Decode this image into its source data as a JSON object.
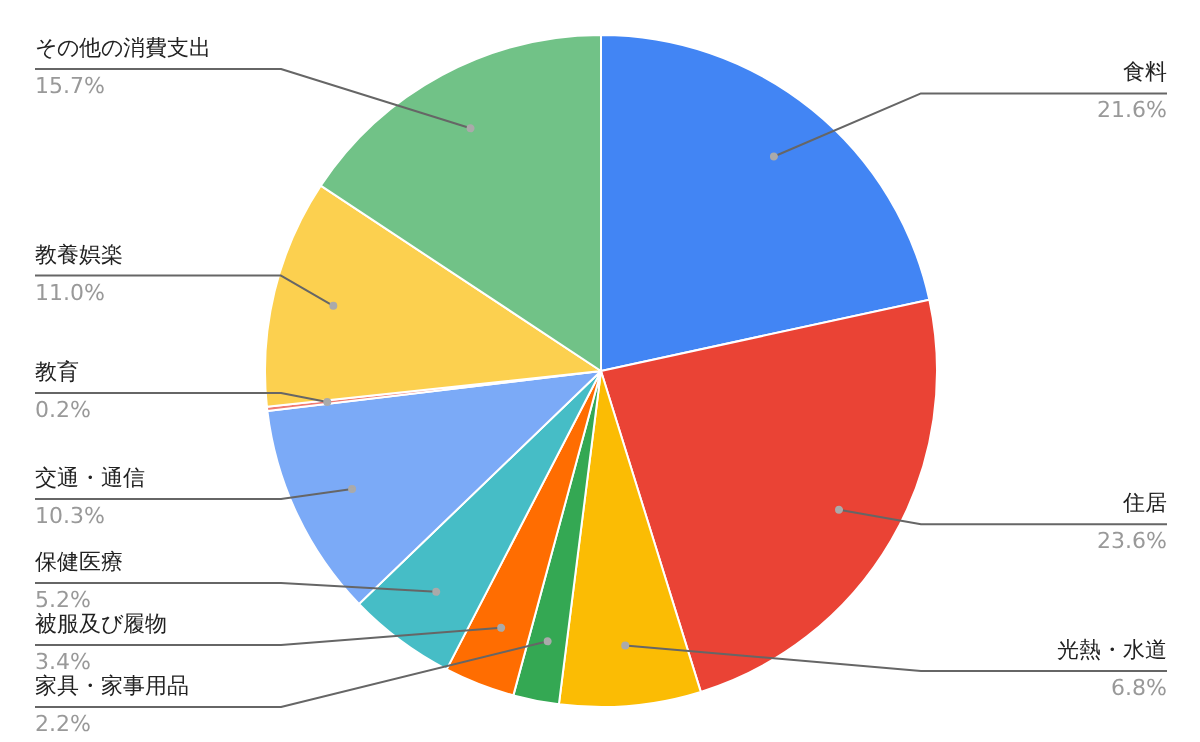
{
  "chart_data": {
    "type": "pie",
    "categories": [
      "食料",
      "住居",
      "光熱・水道",
      "家具・家事用品",
      "被服及び履物",
      "保健医療",
      "交通・通信",
      "教育",
      "教養娯楽",
      "その他の消費支出"
    ],
    "values": [
      21.6,
      23.6,
      6.8,
      2.2,
      3.4,
      5.2,
      10.3,
      0.2,
      11.0,
      15.7
    ],
    "colors": [
      "#4285f4",
      "#ea4335",
      "#fbbc04",
      "#34a853",
      "#ff6d01",
      "#46bdc6",
      "#7baaf7",
      "#f07b72",
      "#fcd04f",
      "#71c287"
    ],
    "value_labels": [
      "21.6%",
      "23.6%",
      "6.8%",
      "2.2%",
      "3.4%",
      "5.2%",
      "10.3%",
      "0.2%",
      "11.0%",
      "15.7%"
    ]
  }
}
